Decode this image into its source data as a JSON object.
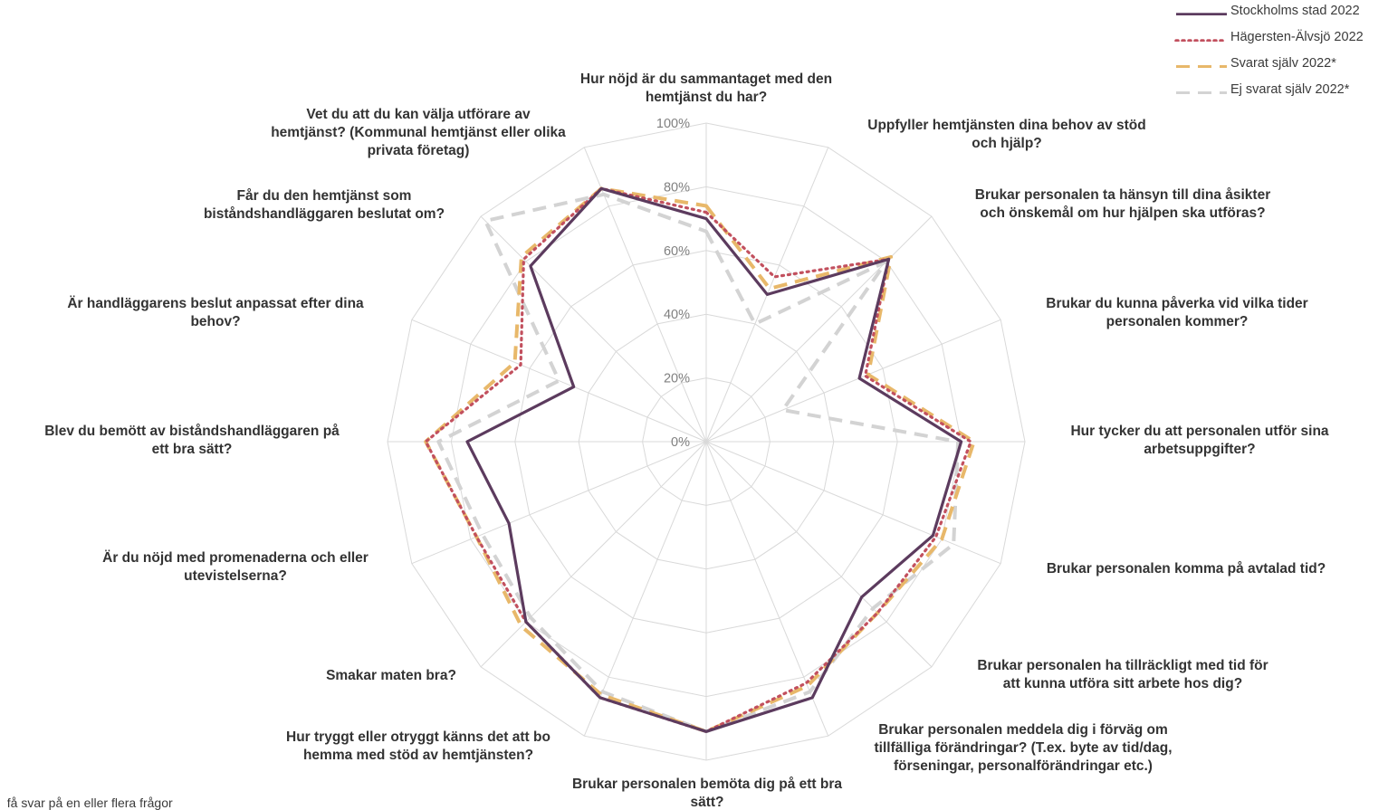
{
  "chart_data": {
    "type": "radar",
    "title": "",
    "rlim": [
      0,
      100
    ],
    "rticks": [
      "0%",
      "20%",
      "40%",
      "60%",
      "80%",
      "100%"
    ],
    "grid": true,
    "legend_position": "top-right",
    "categories": [
      "Hur nöjd är du sammantaget med den hemtjänst du har?",
      "Uppfyller hemtjänsten dina behov av stöd och hjälp?",
      "Brukar personalen ta hänsyn till dina åsikter och önskemål om hur hjälpen ska utföras?",
      "Brukar du kunna påverka vid vilka tider personalen kommer?",
      "Hur tycker du att personalen utför sina arbetsuppgifter?",
      "Brukar personalen komma på avtalad tid?",
      "Brukar personalen ha tillräckligt med tid för att kunna utföra sitt arbete hos dig?",
      "Brukar personalen meddela dig i förväg om tillfälliga förändringar? (T.ex. byte av tid/dag, förseningar, personalförändringar etc.)",
      "Brukar personalen bemöta dig på ett bra sätt?",
      "Hur tryggt eller otryggt känns det att bo hemma med stöd av hemtjänsten?",
      "Smakar maten bra?",
      "Är du nöjd med promenaderna och eller utevistelserna?",
      "Blev du bemött av biståndshandläggaren på ett bra sätt?",
      "Är handläggarens beslut anpassat efter dina behov?",
      "Får du den hemtjänst som biståndshandläggaren beslutat om?",
      "Vet du att du kan välja utförare av hemtjänst? (Kommunal hemtjänst eller olika privata företag)"
    ],
    "category_lines": [
      [
        "Hur nöjd är du sammantaget med den",
        "hemtjänst du har?"
      ],
      [
        "Uppfyller hemtjänsten dina behov av stöd",
        "och hjälp?"
      ],
      [
        "Brukar personalen ta hänsyn till dina åsikter",
        "och önskemål om hur hjälpen ska utföras?"
      ],
      [
        "Brukar du kunna påverka vid vilka tider",
        "personalen kommer?"
      ],
      [
        "Hur tycker du att personalen utför sina",
        "arbetsuppgifter?"
      ],
      [
        "Brukar personalen komma på avtalad tid?"
      ],
      [
        "Brukar personalen ha tillräckligt med tid för",
        "att kunna utföra sitt arbete hos dig?"
      ],
      [
        "Brukar personalen meddela dig i förväg om",
        "tillfälliga förändringar? (T.ex. byte av tid/dag,",
        "förseningar, personalförändringar etc.)"
      ],
      [
        "Brukar personalen bemöta dig på ett bra",
        "sätt?"
      ],
      [
        "Hur tryggt eller otryggt känns det att bo",
        "hemma med stöd av hemtjänsten?"
      ],
      [
        "Smakar maten bra?"
      ],
      [
        "Är du nöjd med promenaderna och eller",
        "utevistelserna?"
      ],
      [
        "Blev du bemött av biståndshandläggaren på",
        "ett bra sätt?"
      ],
      [
        "Är handläggarens beslut anpassat efter dina",
        "behov?"
      ],
      [
        "Får du den hemtjänst som",
        "biståndshandläggaren beslutat om?"
      ],
      [
        "Vet du att du kan välja utförare av",
        "hemtjänst? (Kommunal hemtjänst eller olika",
        "privata företag)"
      ]
    ],
    "series": [
      {
        "name": "Stockholms stad 2022",
        "color": "#5c3b5e",
        "style": "solid",
        "values": [
          70,
          50,
          81,
          52,
          80,
          77,
          69,
          87,
          91,
          87,
          80,
          67,
          75,
          45,
          78,
          86
        ]
      },
      {
        "name": "Hägersten-Älvsjö 2022",
        "color": "#c2505e",
        "style": "dotted",
        "values": [
          72,
          56,
          81,
          54,
          83,
          78,
          76,
          82,
          91,
          87,
          80,
          78,
          88,
          63,
          81,
          86
        ]
      },
      {
        "name": "Svarat själv 2022*",
        "color": "#e8b86a",
        "style": "dashed",
        "values": [
          74,
          52,
          82,
          55,
          84,
          80,
          76,
          83,
          91,
          86,
          82,
          78,
          88,
          65,
          82,
          86
        ]
      },
      {
        "name": "Ej svarat själv 2022*",
        "color": "#d3d3d3",
        "style": "dashed",
        "values": [
          66,
          40,
          80,
          26,
          79,
          84,
          74,
          85,
          91,
          85,
          78,
          76,
          84,
          50,
          98,
          84
        ]
      }
    ]
  },
  "footnote": "t få svar på en eller flera frågor"
}
